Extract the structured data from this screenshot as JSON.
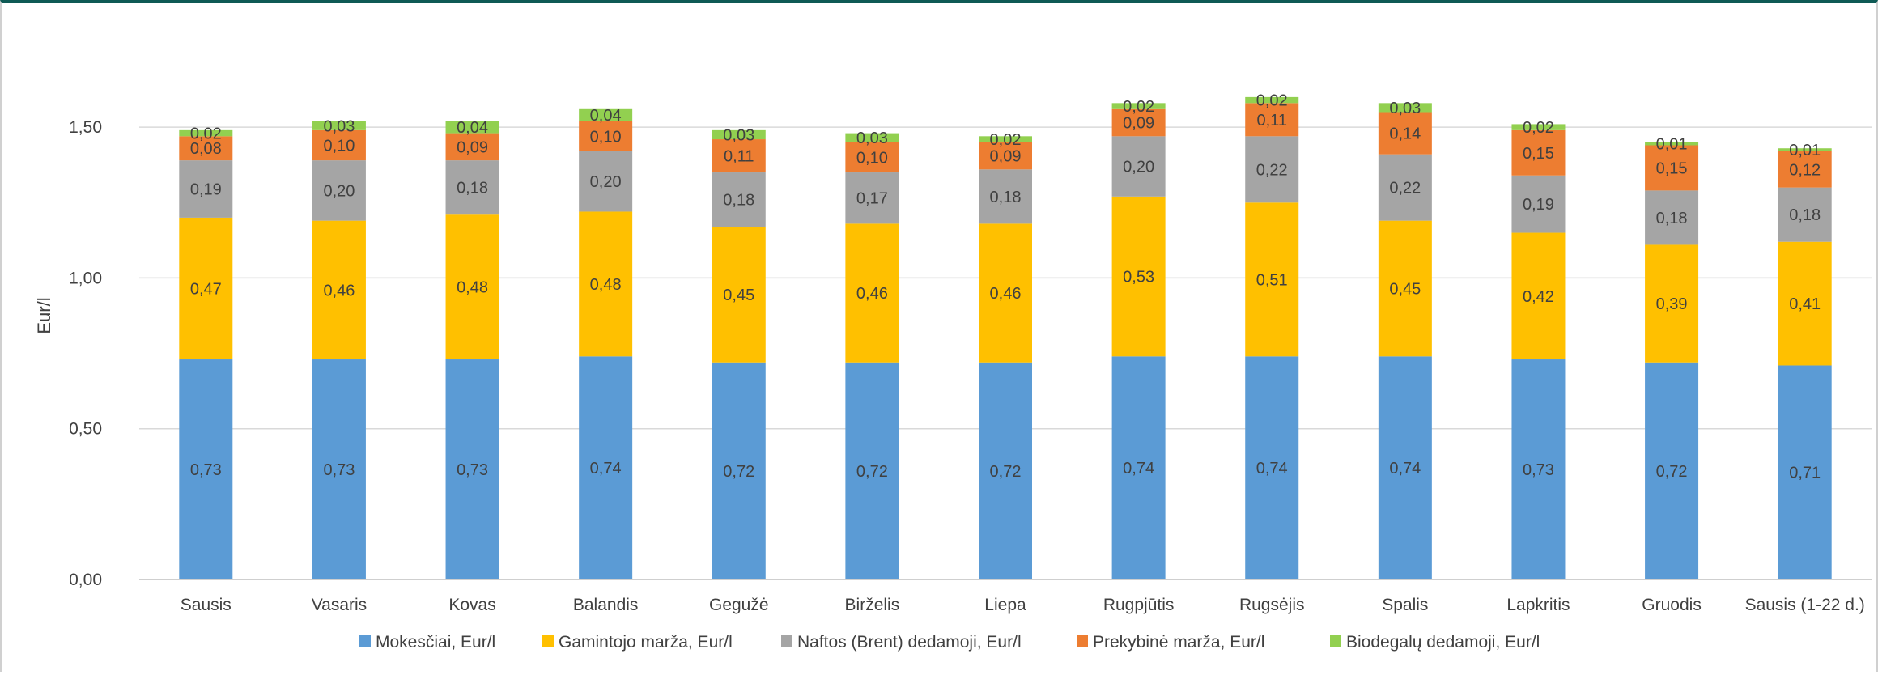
{
  "chart_data": {
    "type": "bar",
    "stacked": true,
    "title": "",
    "xlabel": "",
    "ylabel": "Eur/l",
    "ylim": [
      0,
      1.75
    ],
    "yticks": [
      "0,00",
      "0,50",
      "1,00",
      "1,50"
    ],
    "ytick_values": [
      0,
      0.5,
      1.0,
      1.5
    ],
    "grid": "horizontal",
    "legend_position": "bottom",
    "categories": [
      "Sausis",
      "Vasaris",
      "Kovas",
      "Balandis",
      "Gegužė",
      "Birželis",
      "Liepa",
      "Rugpjūtis",
      "Rugsėjis",
      "Spalis",
      "Lapkritis",
      "Gruodis",
      "Sausis (1-22 d.)"
    ],
    "series": [
      {
        "name": "Mokesčiai, Eur/l",
        "color": "#5b9bd5",
        "values": [
          0.73,
          0.73,
          0.73,
          0.74,
          0.72,
          0.72,
          0.72,
          0.74,
          0.74,
          0.74,
          0.73,
          0.72,
          0.71
        ],
        "labels": [
          "0,73",
          "0,73",
          "0,73",
          "0,74",
          "0,72",
          "0,72",
          "0,72",
          "0,74",
          "0,74",
          "0,74",
          "0,73",
          "0,72",
          "0,71"
        ]
      },
      {
        "name": "Gamintojo marža, Eur/l",
        "color": "#ffc000",
        "values": [
          0.47,
          0.46,
          0.48,
          0.48,
          0.45,
          0.46,
          0.46,
          0.53,
          0.51,
          0.45,
          0.42,
          0.39,
          0.41
        ],
        "labels": [
          "0,47",
          "0,46",
          "0,48",
          "0,48",
          "0,45",
          "0,46",
          "0,46",
          "0,53",
          "0,51",
          "0,45",
          "0,42",
          "0,39",
          "0,41"
        ]
      },
      {
        "name": "Naftos (Brent) dedamoji, Eur/l",
        "color": "#a5a5a5",
        "values": [
          0.19,
          0.2,
          0.18,
          0.2,
          0.18,
          0.17,
          0.18,
          0.2,
          0.22,
          0.22,
          0.19,
          0.18,
          0.18
        ],
        "labels": [
          "0,19",
          "0,20",
          "0,18",
          "0,20",
          "0,18",
          "0,17",
          "0,18",
          "0,20",
          "0,22",
          "0,22",
          "0,19",
          "0,18",
          "0,18"
        ]
      },
      {
        "name": "Prekybinė marža, Eur/l",
        "color": "#ed7d31",
        "values": [
          0.08,
          0.1,
          0.09,
          0.1,
          0.11,
          0.1,
          0.09,
          0.09,
          0.11,
          0.14,
          0.15,
          0.15,
          0.12
        ],
        "labels": [
          "0,08",
          "0,10",
          "0,09",
          "0,10",
          "0,11",
          "0,10",
          "0,09",
          "0,09",
          "0,11",
          "0,14",
          "0,15",
          "0,15",
          "0,12"
        ]
      },
      {
        "name": "Biodegalų dedamoji, Eur/l",
        "color": "#92d050",
        "values": [
          0.02,
          0.03,
          0.04,
          0.04,
          0.03,
          0.03,
          0.02,
          0.02,
          0.02,
          0.03,
          0.02,
          0.01,
          0.01
        ],
        "labels": [
          "0,02",
          "0,03",
          "0,04",
          "0,04",
          "0,03",
          "0,03",
          "0,02",
          "0,02",
          "0,02",
          "0,03",
          "0,02",
          "0,01",
          "0,01"
        ]
      }
    ]
  }
}
